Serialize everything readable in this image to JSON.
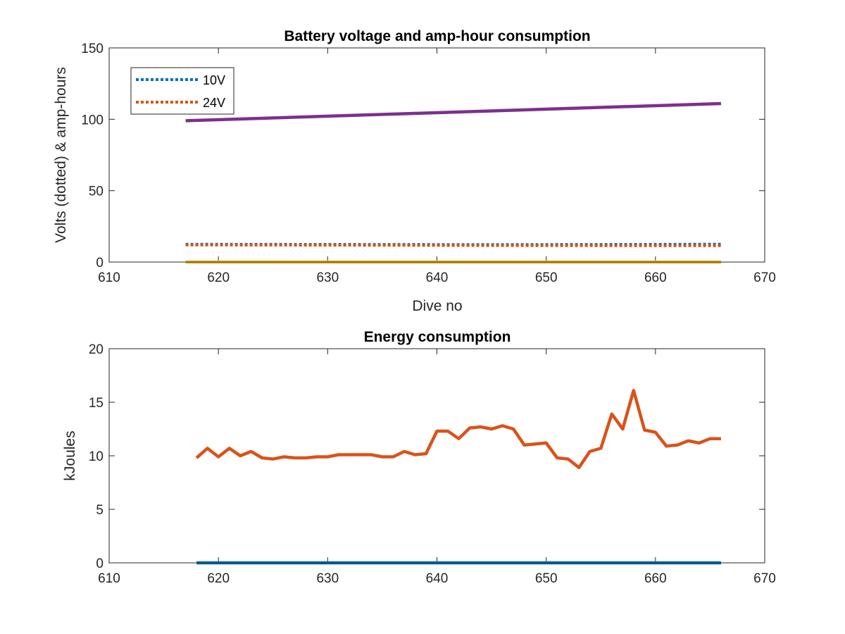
{
  "chart_data": [
    {
      "type": "line",
      "title": "Battery voltage and amp-hour consumption",
      "xlabel": "Dive no",
      "ylabel": "Volts (dotted) & amp-hours",
      "xlim": [
        610,
        670
      ],
      "ylim": [
        0,
        150
      ],
      "xticks": [
        610,
        620,
        630,
        640,
        650,
        660,
        670
      ],
      "yticks": [
        0,
        50,
        100,
        150
      ],
      "legend": {
        "placement": "top-left",
        "entries": [
          "10V",
          "24V"
        ]
      },
      "series": [
        {
          "name": "10V",
          "style": "dotted",
          "color": "#0072BD",
          "x": [
            617,
            625,
            635,
            645,
            655,
            666
          ],
          "y": [
            12.5,
            12.4,
            12.3,
            12.2,
            12.3,
            12.5
          ]
        },
        {
          "name": "24V",
          "style": "dotted",
          "color": "#D95319",
          "x": [
            617,
            625,
            635,
            645,
            655,
            666
          ],
          "y": [
            12.0,
            11.9,
            11.8,
            11.6,
            11.5,
            11.5
          ]
        },
        {
          "style": "solid",
          "color": "#7E2F8E",
          "x": [
            617,
            666
          ],
          "y": [
            99,
            111
          ]
        },
        {
          "style": "solid",
          "color": "#EDB120",
          "x": [
            617,
            666
          ],
          "y": [
            0,
            0
          ]
        }
      ]
    },
    {
      "type": "line",
      "title": "Energy consumption",
      "ylabel": "kJoules",
      "xlim": [
        610,
        670
      ],
      "ylim": [
        0,
        20
      ],
      "xticks": [
        610,
        620,
        630,
        640,
        650,
        660,
        670
      ],
      "yticks": [
        0,
        5,
        10,
        15,
        20
      ],
      "series": [
        {
          "style": "solid",
          "color": "#D95319",
          "x": [
            618,
            619,
            620,
            621,
            622,
            623,
            624,
            625,
            626,
            627,
            628,
            629,
            630,
            631,
            632,
            633,
            634,
            635,
            636,
            637,
            638,
            639,
            640,
            641,
            642,
            643,
            644,
            645,
            646,
            647,
            648,
            649,
            650,
            651,
            652,
            653,
            654,
            655,
            656,
            657,
            658,
            659,
            660,
            661,
            662,
            663,
            664,
            665,
            666
          ],
          "y": [
            9.8,
            10.7,
            9.9,
            10.7,
            10.0,
            10.4,
            9.8,
            9.7,
            9.9,
            9.8,
            9.8,
            9.9,
            9.9,
            10.1,
            10.1,
            10.1,
            10.1,
            9.9,
            9.9,
            10.4,
            10.1,
            10.2,
            12.3,
            12.3,
            11.6,
            12.6,
            12.7,
            12.5,
            12.8,
            12.5,
            11.0,
            11.1,
            11.2,
            9.8,
            9.7,
            8.9,
            10.4,
            10.7,
            13.9,
            12.5,
            16.1,
            12.4,
            12.2,
            10.9,
            11.0,
            11.4,
            11.2,
            11.6,
            11.6
          ]
        },
        {
          "style": "solid",
          "color": "#0072BD",
          "x": [
            618,
            666
          ],
          "y": [
            0,
            0
          ]
        }
      ]
    }
  ]
}
